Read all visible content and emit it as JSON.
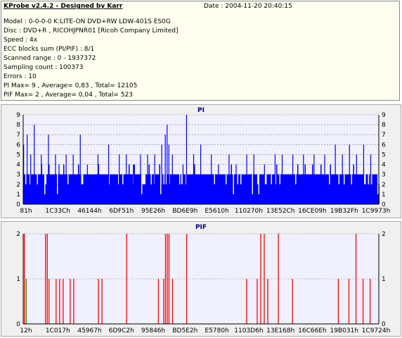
{
  "header": {
    "title": "KProbe v2.4.2 - Designed by Karr",
    "date": "Date : 2004-11-20 20:40:15"
  },
  "info_lines": [
    "Model : 0-0-0-0 K:LITE-ON DVD+RW LDW-401S  ES0G",
    "Disc : DVD+R , RICOHJPNR01 [Ricoh Company Limited]",
    "Speed : 4x",
    "ECC blocks sum (PI/PIF) : 8/1",
    "Scanned range : 0 - 1937372",
    "Sampling count : 100373",
    "Errors : 10",
    "PI Max= 9 , Average= 0,83 , Total= 12105",
    "PIF Max= 2 , Average= 0,04 , Total= 523"
  ],
  "colors": {
    "pi_bar": "#0000ff",
    "pif_bar": "#ff0000",
    "pif_green": "#00aa00",
    "plot_bg": "#f0f0ff",
    "grid": "#808080"
  },
  "chart_data": [
    {
      "type": "bar",
      "title": "PI",
      "ylim": [
        0,
        9
      ],
      "yticks": [
        "0",
        "1",
        "2",
        "3",
        "4",
        "5",
        "6",
        "7",
        "8",
        "9"
      ],
      "xticks": [
        "81h",
        "1C33Ch",
        "46144h",
        "6DF51h",
        "95E26h",
        "BD6E9h",
        "E5610h",
        "110270h",
        "13E52Ch",
        "16CE09h",
        "19B32Fh",
        "1C9973h"
      ],
      "baseline": 3,
      "spikes": [
        {
          "pos": 0.0,
          "v": 6
        },
        {
          "pos": 0.01,
          "v": 7
        },
        {
          "pos": 0.02,
          "v": 5
        },
        {
          "pos": 0.03,
          "v": 8
        },
        {
          "pos": 0.05,
          "v": 5
        },
        {
          "pos": 0.07,
          "v": 7
        },
        {
          "pos": 0.09,
          "v": 5
        },
        {
          "pos": 0.1,
          "v": 4
        },
        {
          "pos": 0.12,
          "v": 5
        },
        {
          "pos": 0.14,
          "v": 5
        },
        {
          "pos": 0.16,
          "v": 7
        },
        {
          "pos": 0.18,
          "v": 4
        },
        {
          "pos": 0.21,
          "v": 5
        },
        {
          "pos": 0.24,
          "v": 6
        },
        {
          "pos": 0.27,
          "v": 5
        },
        {
          "pos": 0.29,
          "v": 5
        },
        {
          "pos": 0.31,
          "v": 4
        },
        {
          "pos": 0.33,
          "v": 5
        },
        {
          "pos": 0.35,
          "v": 5
        },
        {
          "pos": 0.37,
          "v": 5
        },
        {
          "pos": 0.39,
          "v": 6
        },
        {
          "pos": 0.4,
          "v": 7
        },
        {
          "pos": 0.405,
          "v": 8
        },
        {
          "pos": 0.41,
          "v": 6
        },
        {
          "pos": 0.42,
          "v": 5
        },
        {
          "pos": 0.45,
          "v": 4
        },
        {
          "pos": 0.46,
          "v": 9
        },
        {
          "pos": 0.48,
          "v": 5
        },
        {
          "pos": 0.5,
          "v": 6
        },
        {
          "pos": 0.53,
          "v": 5
        },
        {
          "pos": 0.55,
          "v": 4
        },
        {
          "pos": 0.58,
          "v": 5
        },
        {
          "pos": 0.6,
          "v": 4
        },
        {
          "pos": 0.63,
          "v": 5
        },
        {
          "pos": 0.65,
          "v": 5
        },
        {
          "pos": 0.68,
          "v": 4
        },
        {
          "pos": 0.71,
          "v": 5
        },
        {
          "pos": 0.73,
          "v": 5
        },
        {
          "pos": 0.76,
          "v": 5
        },
        {
          "pos": 0.79,
          "v": 5
        },
        {
          "pos": 0.82,
          "v": 5
        },
        {
          "pos": 0.85,
          "v": 5
        },
        {
          "pos": 0.88,
          "v": 6
        },
        {
          "pos": 0.9,
          "v": 5
        },
        {
          "pos": 0.92,
          "v": 6
        },
        {
          "pos": 0.94,
          "v": 5
        },
        {
          "pos": 0.96,
          "v": 6
        },
        {
          "pos": 0.98,
          "v": 5
        }
      ]
    },
    {
      "type": "bar",
      "title": "PIF",
      "ylim": [
        0,
        2
      ],
      "yticks": [
        "0",
        "1",
        "2"
      ],
      "xticks": [
        "12h",
        "1C017h",
        "45967h",
        "6D9C2h",
        "95846h",
        "BD5E2h",
        "E5780h",
        "1103D6h",
        "13E168h",
        "16C66Eh",
        "19B031h",
        "1C9724h"
      ],
      "bars": [
        {
          "pos": 0.0,
          "v": 2
        },
        {
          "pos": 0.005,
          "v": 1
        },
        {
          "pos": 0.06,
          "v": 2
        },
        {
          "pos": 0.065,
          "v": 2
        },
        {
          "pos": 0.07,
          "v": 1
        },
        {
          "pos": 0.09,
          "v": 1
        },
        {
          "pos": 0.1,
          "v": 1
        },
        {
          "pos": 0.11,
          "v": 1
        },
        {
          "pos": 0.13,
          "v": 1
        },
        {
          "pos": 0.14,
          "v": 1
        },
        {
          "pos": 0.21,
          "v": 1
        },
        {
          "pos": 0.22,
          "v": 1
        },
        {
          "pos": 0.29,
          "v": 2
        },
        {
          "pos": 0.38,
          "v": 1
        },
        {
          "pos": 0.395,
          "v": 1
        },
        {
          "pos": 0.4,
          "v": 2
        },
        {
          "pos": 0.405,
          "v": 2
        },
        {
          "pos": 0.41,
          "v": 2
        },
        {
          "pos": 0.42,
          "v": 1
        },
        {
          "pos": 0.46,
          "v": 2
        },
        {
          "pos": 0.63,
          "v": 1
        },
        {
          "pos": 0.66,
          "v": 1
        },
        {
          "pos": 0.67,
          "v": 2
        },
        {
          "pos": 0.68,
          "v": 2
        },
        {
          "pos": 0.69,
          "v": 1
        },
        {
          "pos": 0.72,
          "v": 2
        },
        {
          "pos": 0.76,
          "v": 1
        },
        {
          "pos": 0.89,
          "v": 1
        },
        {
          "pos": 0.92,
          "v": 1
        },
        {
          "pos": 0.94,
          "v": 2
        },
        {
          "pos": 0.96,
          "v": 1
        },
        {
          "pos": 0.98,
          "v": 1
        }
      ],
      "green_bar": {
        "pos": 0.005,
        "v": 1
      }
    }
  ]
}
